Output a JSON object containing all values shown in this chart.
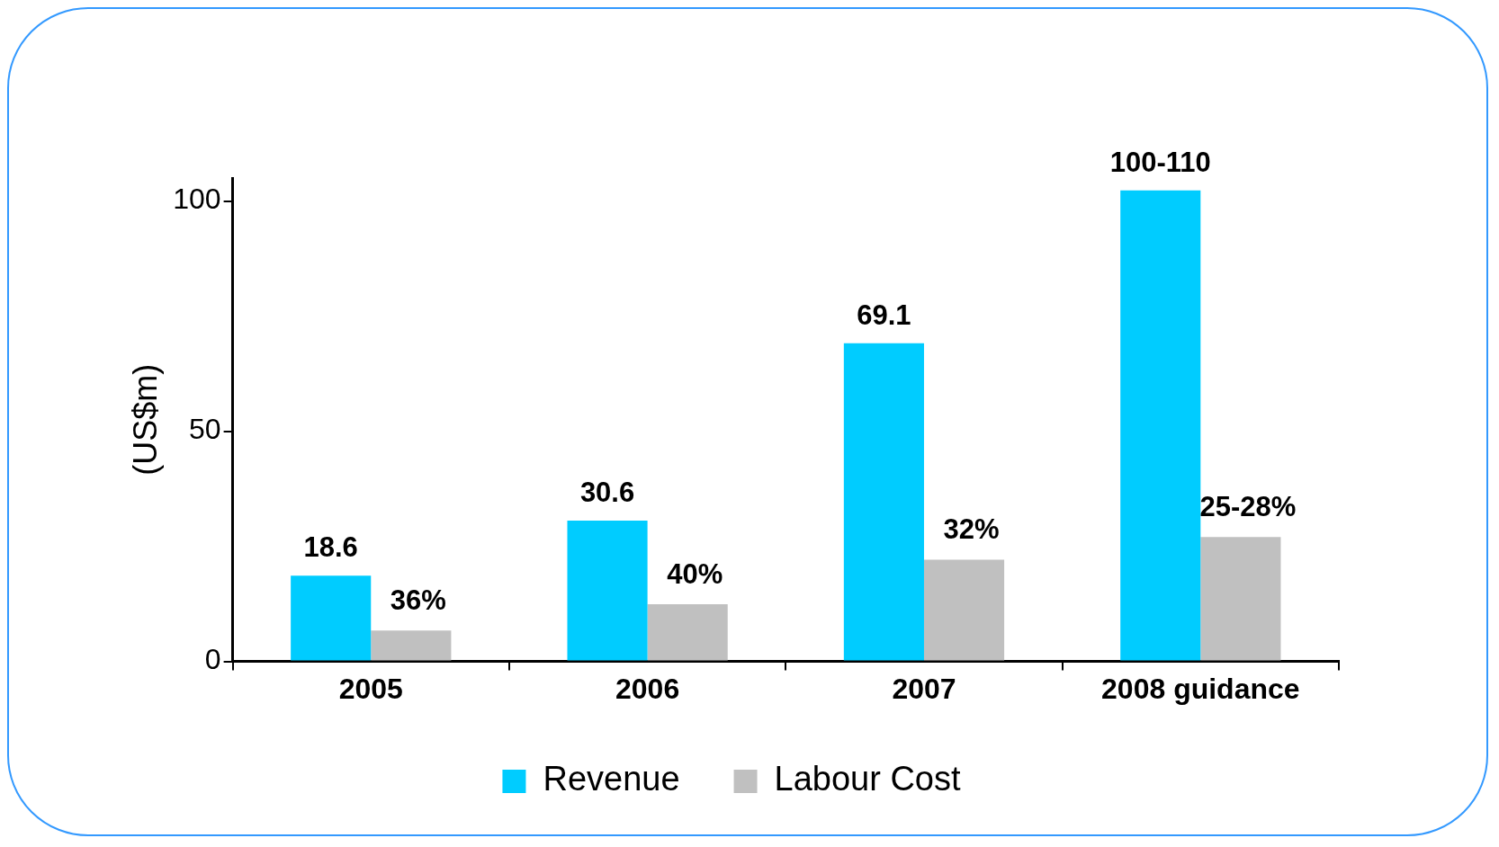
{
  "chart_data": {
    "type": "bar",
    "ylabel": "(US$m)",
    "categories": [
      "2005",
      "2006",
      "2007",
      "2008 guidance"
    ],
    "series": [
      {
        "name": "Revenue",
        "color": "#00ccff",
        "values": [
          18.6,
          30.6,
          69.1,
          102.3
        ],
        "value_labels": [
          "18.6",
          "30.6",
          "69.1",
          "100-110"
        ]
      },
      {
        "name": "Labour Cost",
        "color": "#c0c0c0",
        "values": [
          6.7,
          12.4,
          22.1,
          27.0
        ]
      }
    ],
    "annotations": [
      {
        "text": "36%",
        "x": "2005",
        "y": 6.7
      },
      {
        "text": "40%",
        "x": "2006",
        "y": 12.4
      },
      {
        "text": "32%",
        "x": "2007",
        "y": 22.1
      },
      {
        "text": "25-28%",
        "x": "2008 guidance",
        "y": 27.0
      }
    ],
    "ylim": [
      0,
      105
    ],
    "yticks": [
      0,
      50,
      100
    ],
    "grid": false,
    "legend": "bottom"
  }
}
